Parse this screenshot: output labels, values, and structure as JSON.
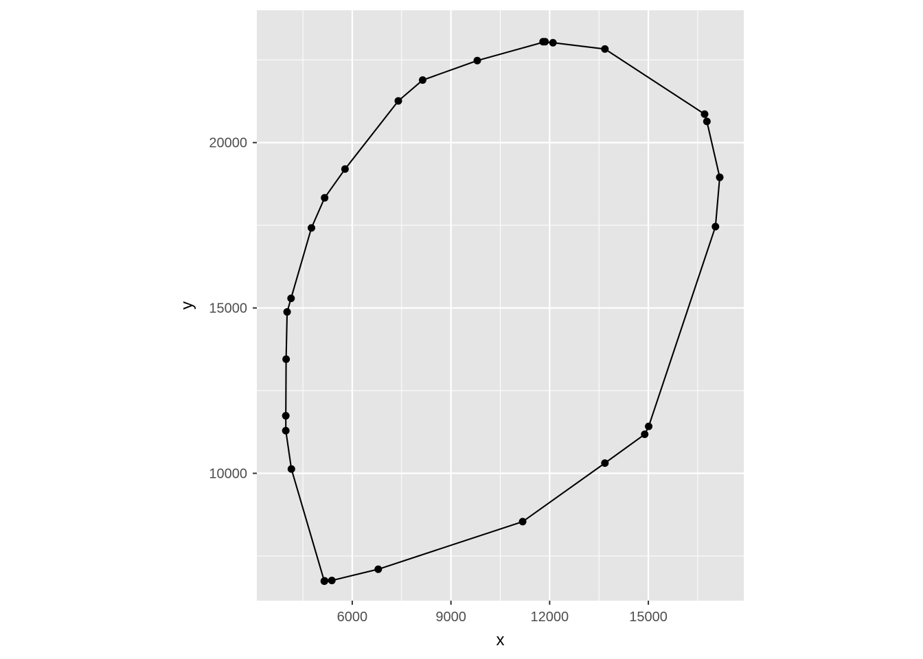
{
  "chart_data": {
    "type": "scatter",
    "geom": "path-with-points",
    "xlabel": "x",
    "ylabel": "y",
    "xlim": [
      3100,
      17900
    ],
    "ylim": [
      6150,
      24000
    ],
    "x_ticks": [
      6000,
      9000,
      12000,
      15000
    ],
    "y_ticks": [
      10000,
      15000,
      20000
    ],
    "grid": true,
    "legend": "none",
    "colors": {
      "panel": "#e5e5e5",
      "grid": "#ffffff",
      "line": "#000000",
      "point": "#000000",
      "tick_text": "#4d4d4d"
    },
    "points": [
      {
        "x": 11800,
        "y": 23050
      },
      {
        "x": 12100,
        "y": 23020
      },
      {
        "x": 13680,
        "y": 22830
      },
      {
        "x": 16710,
        "y": 20860
      },
      {
        "x": 16780,
        "y": 20640
      },
      {
        "x": 17170,
        "y": 18950
      },
      {
        "x": 17040,
        "y": 17460
      },
      {
        "x": 15010,
        "y": 11420
      },
      {
        "x": 14890,
        "y": 11180
      },
      {
        "x": 13680,
        "y": 10310
      },
      {
        "x": 11180,
        "y": 8540
      },
      {
        "x": 6790,
        "y": 7100
      },
      {
        "x": 5380,
        "y": 6760
      },
      {
        "x": 5160,
        "y": 6750
      },
      {
        "x": 5150,
        "y": 6740
      },
      {
        "x": 4150,
        "y": 10130
      },
      {
        "x": 3980,
        "y": 11290
      },
      {
        "x": 3980,
        "y": 11740
      },
      {
        "x": 3990,
        "y": 13450
      },
      {
        "x": 4020,
        "y": 14880
      },
      {
        "x": 4140,
        "y": 15290
      },
      {
        "x": 4760,
        "y": 17420
      },
      {
        "x": 5160,
        "y": 18330
      },
      {
        "x": 5780,
        "y": 19200
      },
      {
        "x": 7400,
        "y": 21260
      },
      {
        "x": 8140,
        "y": 21890
      },
      {
        "x": 9800,
        "y": 22480
      },
      {
        "x": 11860,
        "y": 23050
      }
    ]
  }
}
